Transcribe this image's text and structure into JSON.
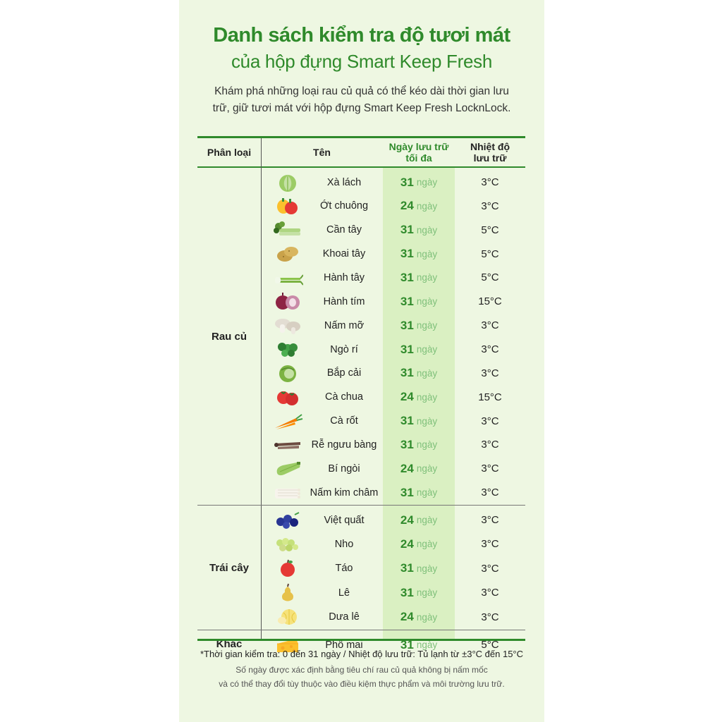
{
  "title_line1": "Danh sách kiểm tra độ tươi mát",
  "title_line2": "của hộp đựng Smart Keep Fresh",
  "intro_line1": "Khám phá những loại rau củ quả có thể kéo dài thời gian lưu",
  "intro_line2": "trữ, giữ tươi mát với hộp đựng Smart Keep Fresh LocknLock.",
  "headers": {
    "category": "Phân loại",
    "name": "Tên",
    "max_days_line1": "Ngày lưu trữ",
    "max_days_line2": "tối đa",
    "temp_line1": "Nhiệt độ",
    "temp_line2": "lưu trữ"
  },
  "day_unit": "ngày",
  "categories": [
    {
      "label": "Rau củ",
      "items": [
        {
          "name": "Xà lách",
          "days": "31",
          "temp": "3°C",
          "icon": "lettuce-icon"
        },
        {
          "name": "Ớt chuông",
          "days": "24",
          "temp": "3°C",
          "icon": "bell-pepper-icon"
        },
        {
          "name": "Cần tây",
          "days": "31",
          "temp": "5°C",
          "icon": "celery-icon"
        },
        {
          "name": "Khoai tây",
          "days": "31",
          "temp": "5°C",
          "icon": "potato-icon"
        },
        {
          "name": "Hành tây",
          "days": "31",
          "temp": "5°C",
          "icon": "green-onion-icon"
        },
        {
          "name": "Hành tím",
          "days": "31",
          "temp": "15°C",
          "icon": "red-onion-icon"
        },
        {
          "name": "Nấm mỡ",
          "days": "31",
          "temp": "3°C",
          "icon": "mushroom-icon"
        },
        {
          "name": "Ngò rí",
          "days": "31",
          "temp": "3°C",
          "icon": "coriander-icon"
        },
        {
          "name": "Bắp cải",
          "days": "31",
          "temp": "3°C",
          "icon": "cabbage-icon"
        },
        {
          "name": "Cà chua",
          "days": "24",
          "temp": "15°C",
          "icon": "tomato-icon"
        },
        {
          "name": "Cà rốt",
          "days": "31",
          "temp": "3°C",
          "icon": "carrot-icon"
        },
        {
          "name": "Rễ ngưu bàng",
          "days": "31",
          "temp": "3°C",
          "icon": "burdock-root-icon"
        },
        {
          "name": "Bí ngòi",
          "days": "24",
          "temp": "3°C",
          "icon": "zucchini-icon"
        },
        {
          "name": "Nấm kim châm",
          "days": "31",
          "temp": "3°C",
          "icon": "enoki-mushroom-icon"
        }
      ]
    },
    {
      "label": "Trái cây",
      "items": [
        {
          "name": "Việt quất",
          "days": "24",
          "temp": "3°C",
          "icon": "blueberry-icon"
        },
        {
          "name": "Nho",
          "days": "24",
          "temp": "3°C",
          "icon": "grape-icon"
        },
        {
          "name": "Táo",
          "days": "31",
          "temp": "3°C",
          "icon": "apple-icon"
        },
        {
          "name": "Lê",
          "days": "31",
          "temp": "3°C",
          "icon": "pear-icon"
        },
        {
          "name": "Dưa lê",
          "days": "24",
          "temp": "3°C",
          "icon": "melon-icon"
        }
      ]
    },
    {
      "label": "Khác",
      "items": [
        {
          "name": "Phô mai",
          "days": "31",
          "temp": "5°C",
          "icon": "cheese-icon"
        }
      ]
    }
  ],
  "footnote_line1": "*Thời gian kiểm tra: 0 đến 31 ngày / Nhiệt độ lưu trữ: Tủ lạnh từ ±3°C đến 15°C",
  "footnote_line2": "Số ngày được xác định bằng tiêu chí rau củ quả không bị nấm mốc",
  "footnote_line3": "và có thể thay đổi tùy thuộc vào điều kiệm thực phẩm và môi trường lưu trữ."
}
